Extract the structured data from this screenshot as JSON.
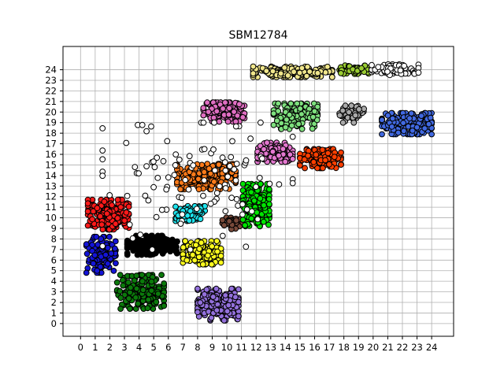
{
  "chart_data": {
    "type": "scatter",
    "title": "SBM12784",
    "xlabel": "",
    "ylabel": "",
    "xlim": [
      -1.2,
      25.5
    ],
    "ylim": [
      -1.2,
      26.2
    ],
    "x_ticks": [
      0,
      1,
      2,
      3,
      4,
      5,
      6,
      7,
      8,
      9,
      10,
      11,
      12,
      13,
      14,
      15,
      16,
      17,
      18,
      19,
      20,
      21,
      22,
      23,
      24
    ],
    "y_ticks": [
      0,
      1,
      2,
      3,
      4,
      5,
      6,
      7,
      8,
      9,
      10,
      11,
      12,
      13,
      14,
      15,
      16,
      17,
      18,
      19,
      20,
      21,
      22,
      23,
      24
    ],
    "grid": true,
    "legend": "none",
    "marker": "circle",
    "marker_edge_color": "#000000",
    "clusters": [
      {
        "color": "#ff1a1a",
        "center": [
          1.9,
          10.3
        ],
        "spread": [
          1.4,
          1.4
        ],
        "count": 180
      },
      {
        "color": "#1414d8",
        "center": [
          1.4,
          6.5
        ],
        "spread": [
          1.0,
          1.7
        ],
        "count": 130
      },
      {
        "color": "#000000",
        "center": [
          4.9,
          7.4
        ],
        "spread": [
          1.7,
          0.9
        ],
        "count": 190
      },
      {
        "color": "#0b7a0b",
        "center": [
          4.1,
          3.0
        ],
        "spread": [
          1.6,
          1.6
        ],
        "count": 200
      },
      {
        "color": "#9370db",
        "center": [
          9.4,
          1.8
        ],
        "spread": [
          1.4,
          1.5
        ],
        "count": 190
      },
      {
        "color": "#ffff1e",
        "center": [
          8.3,
          6.7
        ],
        "spread": [
          1.3,
          1.1
        ],
        "count": 170
      },
      {
        "color": "#1ee6f0",
        "center": [
          7.5,
          10.4
        ],
        "spread": [
          1.0,
          0.7
        ],
        "count": 110
      },
      {
        "color": "#7a4a3a",
        "center": [
          10.4,
          9.5
        ],
        "spread": [
          0.7,
          0.6
        ],
        "count": 50
      },
      {
        "color": "#00e600",
        "center": [
          12.0,
          11.2
        ],
        "spread": [
          0.9,
          2.0
        ],
        "count": 190
      },
      {
        "color": "#ff7b1a",
        "center": [
          8.6,
          13.9
        ],
        "spread": [
          2.0,
          1.2
        ],
        "count": 230
      },
      {
        "color": "#e478d0",
        "center": [
          13.3,
          16.2
        ],
        "spread": [
          1.2,
          0.9
        ],
        "count": 110
      },
      {
        "color": "#ff3f00",
        "center": [
          16.4,
          15.6
        ],
        "spread": [
          1.4,
          0.9
        ],
        "count": 140
      },
      {
        "color": "#7ee07e",
        "center": [
          14.7,
          19.6
        ],
        "spread": [
          1.5,
          1.2
        ],
        "count": 150
      },
      {
        "color": "#e06ec2",
        "center": [
          9.8,
          20.0
        ],
        "spread": [
          1.4,
          0.9
        ],
        "count": 150
      },
      {
        "color": "#f0e68c",
        "center": [
          14.5,
          23.8
        ],
        "spread": [
          2.7,
          0.5
        ],
        "count": 190
      },
      {
        "color": "#9acd32",
        "center": [
          18.7,
          24.0
        ],
        "spread": [
          1.0,
          0.4
        ],
        "count": 60
      },
      {
        "color": "#ffffff",
        "center": [
          21.5,
          24.0
        ],
        "spread": [
          1.6,
          0.5
        ],
        "count": 80
      },
      {
        "color": "#a9a9a9",
        "center": [
          18.6,
          19.8
        ],
        "spread": [
          0.9,
          0.8
        ],
        "count": 50
      },
      {
        "color": "#4169e1",
        "center": [
          22.3,
          18.9
        ],
        "spread": [
          1.7,
          1.0
        ],
        "count": 210
      },
      {
        "color": "#ffffff",
        "center": [
          8.0,
          13.0
        ],
        "spread": [
          6.5,
          6.0
        ],
        "count": 110
      }
    ]
  }
}
